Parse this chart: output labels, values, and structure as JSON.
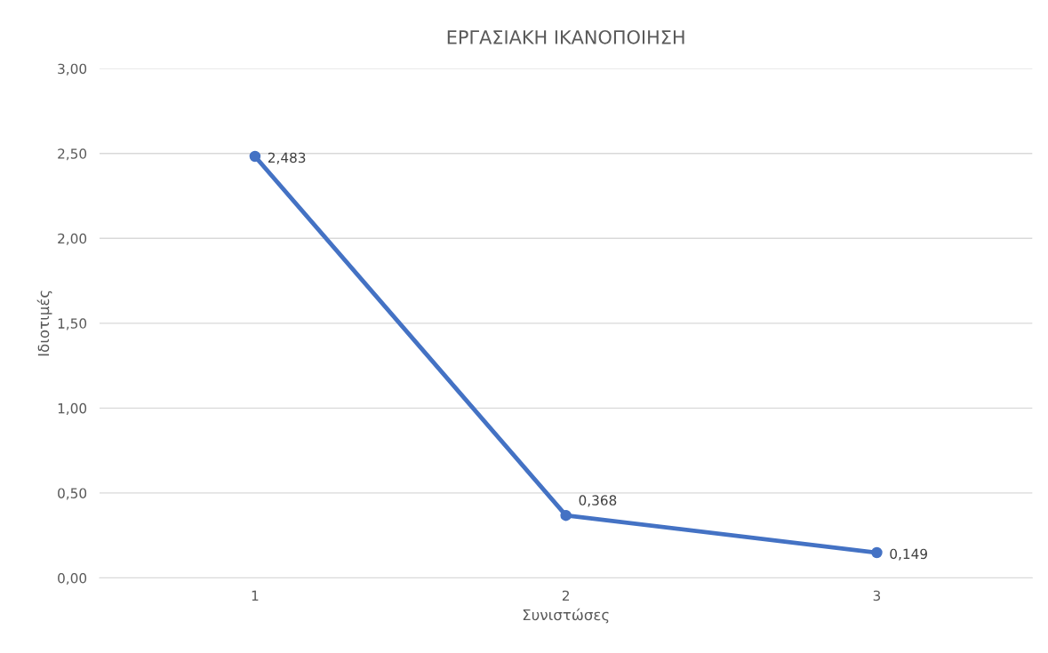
{
  "chart_data": {
    "type": "line",
    "title": "ΕΡΓΑΣΙΑΚΗ ΙΚΑΝΟΠΟΙΗΣΗ",
    "xlabel": "Συνιστώσες",
    "ylabel": "Ιδιοτιμές",
    "categories": [
      "1",
      "2",
      "3"
    ],
    "series": [
      {
        "color": "#4472c4",
        "values": [
          2.483,
          0.368,
          0.149
        ],
        "value_labels": [
          "2,483",
          "0,368",
          "0,149"
        ]
      }
    ],
    "ylim": [
      0,
      3
    ],
    "yticks": [
      {
        "value": 0,
        "label": "0,00"
      },
      {
        "value": 0.5,
        "label": "0,50"
      },
      {
        "value": 1,
        "label": "1,00"
      },
      {
        "value": 1.5,
        "label": "1,50"
      },
      {
        "value": 2,
        "label": "2,00"
      },
      {
        "value": 2.5,
        "label": "2,50"
      },
      {
        "value": 3,
        "label": "3,00"
      }
    ],
    "grid": "y",
    "marker": "circle",
    "line_style": "solid"
  }
}
